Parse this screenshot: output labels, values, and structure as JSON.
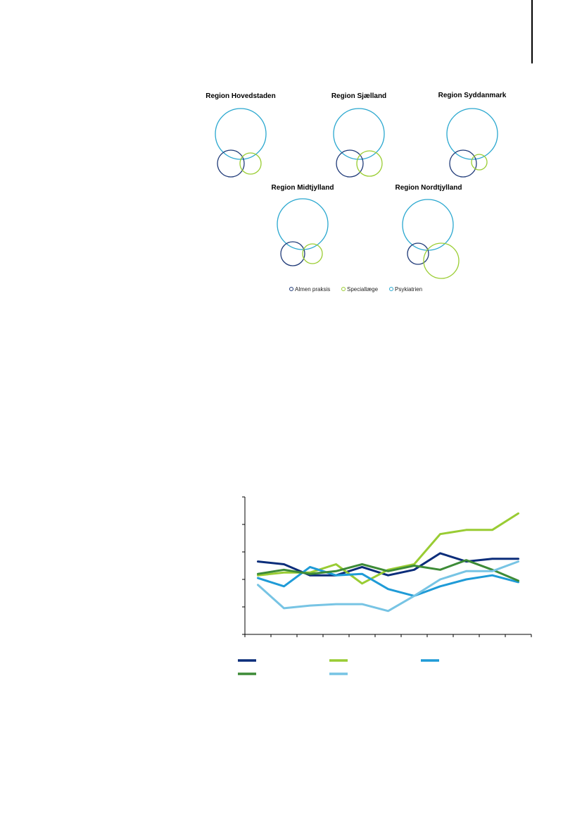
{
  "chart_data": [
    {
      "type": "venn",
      "panels": [
        {
          "title": "Region Hovedstaden",
          "circles": {
            "Almen praksis": 0.22,
            "Speciallæge": 0.12,
            "Psykiatrien": 1.0
          }
        },
        {
          "title": "Region Sjælland",
          "circles": {
            "Almen praksis": 0.29,
            "Speciallæge": 0.27,
            "Psykiatrien": 1.0
          }
        },
        {
          "title": "Region Syddanmark",
          "circles": {
            "Almen praksis": 0.29,
            "Speciallæge": 0.09,
            "Psykiatrien": 1.0
          }
        },
        {
          "title": "Region Midtjylland",
          "circles": {
            "Almen praksis": 0.22,
            "Speciallæge": 0.15,
            "Psykiatrien": 1.0
          }
        },
        {
          "title": "Region Nordtjylland",
          "circles": {
            "Almen praksis": 0.17,
            "Speciallæge": 0.49,
            "Psykiatrien": 1.0
          }
        }
      ],
      "legend": [
        "Almen praksis",
        "Speciallæge",
        "Psykiatrien"
      ],
      "colors": {
        "Almen praksis": "#1f3a78",
        "Speciallæge": "#9acd32",
        "Psykiatrien": "#29a7cf"
      }
    },
    {
      "type": "line",
      "x": [
        1,
        2,
        3,
        4,
        5,
        6,
        7,
        8,
        9,
        10,
        11
      ],
      "ylim": [
        0,
        5
      ],
      "series": [
        {
          "values": [
            2.65,
            2.55,
            2.15,
            2.15,
            2.45,
            2.15,
            2.35,
            2.95,
            2.65,
            2.75,
            2.75
          ],
          "color": "#0b2d7a"
        },
        {
          "values": [
            2.15,
            2.25,
            2.25,
            2.55,
            1.85,
            2.35,
            2.55,
            3.65,
            3.8,
            3.8,
            4.4
          ],
          "color": "#99cc33"
        },
        {
          "values": [
            2.05,
            1.75,
            2.45,
            2.15,
            2.2,
            1.65,
            1.4,
            1.75,
            2.0,
            2.15,
            1.9
          ],
          "color": "#1f9bd7"
        },
        {
          "values": [
            2.2,
            2.35,
            2.2,
            2.3,
            2.55,
            2.3,
            2.5,
            2.35,
            2.7,
            2.35,
            1.95
          ],
          "color": "#3d8b37"
        },
        {
          "values": [
            1.8,
            0.95,
            1.05,
            1.1,
            1.1,
            0.85,
            1.4,
            2.0,
            2.3,
            2.3,
            2.65
          ],
          "color": "#77c4e4"
        }
      ],
      "legend_placement": "bottom",
      "grid": false
    }
  ]
}
